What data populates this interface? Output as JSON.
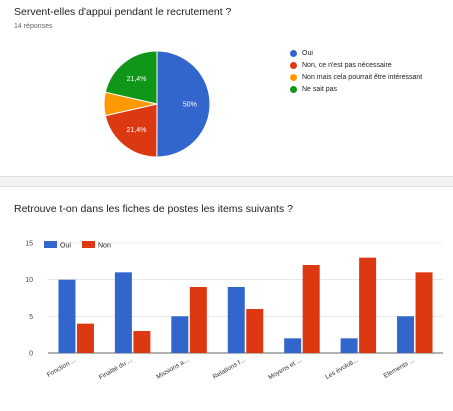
{
  "pie_question": {
    "title": "Servent-elles d'appui pendant le recrutement ?",
    "responses": "14 réponses"
  },
  "bar_question": {
    "title": "Retrouve t-on dans les fiches de postes les items suivants ?"
  },
  "chart_data": [
    {
      "type": "pie",
      "categories": [
        "Oui",
        "Non, ce n'est pas nécessaire",
        "Non mais cela pourrait être intéressant",
        "Ne sait pas"
      ],
      "values": [
        50,
        21.4,
        7.1,
        21.4
      ],
      "labels": [
        "50%",
        "21,4%",
        "",
        "21,4%"
      ],
      "colors": [
        "#3366cc",
        "#dc3912",
        "#ff9900",
        "#109618"
      ],
      "legend_position": "right"
    },
    {
      "type": "bar",
      "categories": [
        "Fonction ...",
        "Finalité du ...",
        "Missions a...",
        "Relations f...",
        "Moyens et ...",
        "Les évoluti...",
        "Elements ..."
      ],
      "series": [
        {
          "name": "Oui",
          "color": "#3366cc",
          "values": [
            10,
            11,
            5,
            9,
            2,
            2,
            5
          ]
        },
        {
          "name": "Non",
          "color": "#dc3912",
          "values": [
            4,
            3,
            9,
            6,
            12,
            13,
            11
          ]
        }
      ],
      "yticks": [
        "0",
        "5",
        "10",
        "15"
      ],
      "ylim": [
        0,
        15
      ],
      "grid": true,
      "legend_position": "top-left"
    }
  ]
}
